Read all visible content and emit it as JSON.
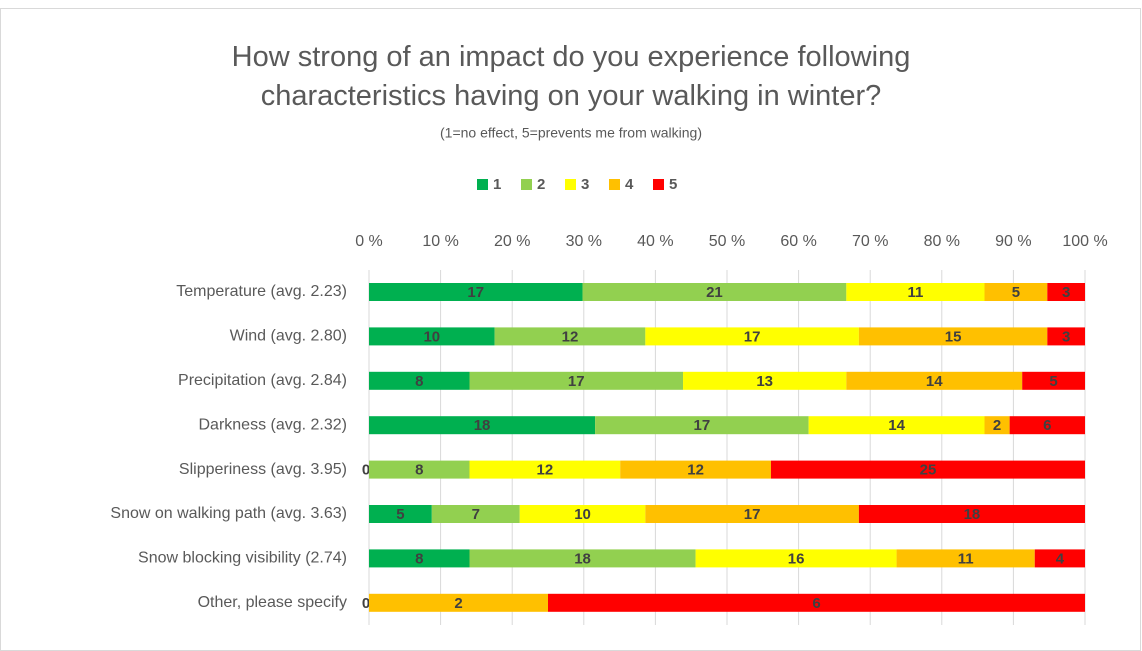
{
  "chart_data": {
    "type": "bar",
    "orientation": "horizontal",
    "stacking": "percent",
    "title": "How strong of an impact do you experience following characteristics having on your walking in winter?",
    "subtitle": "(1=no effect, 5=prevents me from walking)",
    "categories": [
      "Temperature (avg. 2.23)",
      "Wind (avg. 2.80)",
      "Precipitation (avg. 2.84)",
      "Darkness (avg. 2.32)",
      "Slipperiness (avg. 3.95)",
      "Snow on walking path (avg. 3.63)",
      "Snow blocking visibility (2.74)",
      "Other, please specify"
    ],
    "series": [
      {
        "name": "1",
        "color": "#00b050",
        "values": [
          17,
          10,
          8,
          18,
          0,
          5,
          8,
          0
        ]
      },
      {
        "name": "2",
        "color": "#92d050",
        "values": [
          21,
          12,
          17,
          17,
          8,
          7,
          18,
          null
        ]
      },
      {
        "name": "3",
        "color": "#ffff00",
        "values": [
          11,
          17,
          13,
          14,
          12,
          10,
          16,
          null
        ]
      },
      {
        "name": "4",
        "color": "#ffc000",
        "values": [
          5,
          15,
          14,
          2,
          12,
          17,
          11,
          2
        ]
      },
      {
        "name": "5",
        "color": "#ff0000",
        "values": [
          3,
          3,
          5,
          6,
          25,
          18,
          4,
          6
        ]
      }
    ],
    "xlim": [
      0,
      100
    ],
    "xticks": [
      {
        "value": 0,
        "label": "0 %"
      },
      {
        "value": 10,
        "label": "10 %"
      },
      {
        "value": 20,
        "label": "20 %"
      },
      {
        "value": 30,
        "label": "30 %"
      },
      {
        "value": 40,
        "label": "40 %"
      },
      {
        "value": 50,
        "label": "50 %"
      },
      {
        "value": 60,
        "label": "60 %"
      },
      {
        "value": 70,
        "label": "70 %"
      },
      {
        "value": 80,
        "label": "80 %"
      },
      {
        "value": 90,
        "label": "90 %"
      },
      {
        "value": 100,
        "label": "100 %"
      }
    ],
    "grid": true,
    "legend": "top"
  }
}
